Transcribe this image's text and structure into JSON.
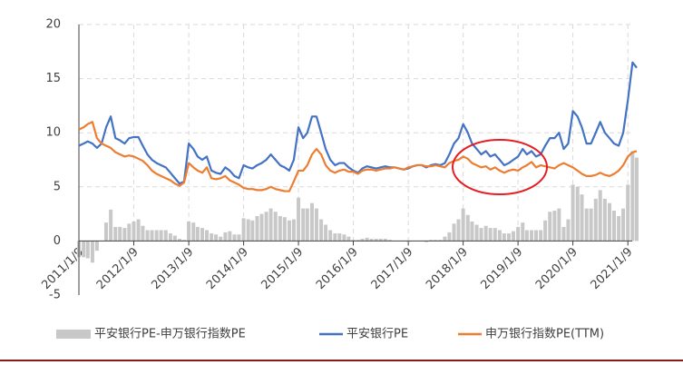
{
  "chart_data": {
    "type": "line",
    "x": [
      "2011/1/9",
      "2011/2/9",
      "2011/3/9",
      "2011/4/9",
      "2011/5/9",
      "2011/6/9",
      "2011/7/9",
      "2011/8/9",
      "2011/9/9",
      "2011/10/9",
      "2011/11/9",
      "2011/12/9",
      "2012/1/9",
      "2012/2/9",
      "2012/3/9",
      "2012/4/9",
      "2012/5/9",
      "2012/6/9",
      "2012/7/9",
      "2012/8/9",
      "2012/9/9",
      "2012/10/9",
      "2012/11/9",
      "2012/12/9",
      "2013/1/9",
      "2013/2/9",
      "2013/3/9",
      "2013/4/9",
      "2013/5/9",
      "2013/6/9",
      "2013/7/9",
      "2013/8/9",
      "2013/9/9",
      "2013/10/9",
      "2013/11/9",
      "2013/12/9",
      "2014/1/9",
      "2014/2/9",
      "2014/3/9",
      "2014/4/9",
      "2014/5/9",
      "2014/6/9",
      "2014/7/9",
      "2014/8/9",
      "2014/9/9",
      "2014/10/9",
      "2014/11/9",
      "2014/12/9",
      "2015/1/9",
      "2015/2/9",
      "2015/3/9",
      "2015/4/9",
      "2015/5/9",
      "2015/6/9",
      "2015/7/9",
      "2015/8/9",
      "2015/9/9",
      "2015/10/9",
      "2015/11/9",
      "2015/12/9",
      "2016/1/9",
      "2016/2/9",
      "2016/3/9",
      "2016/4/9",
      "2016/5/9",
      "2016/6/9",
      "2016/7/9",
      "2016/8/9",
      "2016/9/9",
      "2016/10/9",
      "2016/11/9",
      "2016/12/9",
      "2017/1/9",
      "2017/2/9",
      "2017/3/9",
      "2017/4/9",
      "2017/5/9",
      "2017/6/9",
      "2017/7/9",
      "2017/8/9",
      "2017/9/9",
      "2017/10/9",
      "2017/11/9",
      "2017/12/9",
      "2018/1/9",
      "2018/2/9",
      "2018/3/9",
      "2018/4/9",
      "2018/5/9",
      "2018/6/9",
      "2018/7/9",
      "2018/8/9",
      "2018/9/9",
      "2018/10/9",
      "2018/11/9",
      "2018/12/9",
      "2019/1/9",
      "2019/2/9",
      "2019/3/9",
      "2019/4/9",
      "2019/5/9",
      "2019/6/9",
      "2019/7/9",
      "2019/8/9",
      "2019/9/9",
      "2019/10/9",
      "2019/11/9",
      "2019/12/9",
      "2020/1/9",
      "2020/2/9",
      "2020/3/9",
      "2020/4/9",
      "2020/5/9",
      "2020/6/9",
      "2020/7/9",
      "2020/8/9",
      "2020/9/9",
      "2020/10/9",
      "2020/11/9",
      "2020/12/9",
      "2021/1/9",
      "2021/2/9",
      "2021/3/9"
    ],
    "series": [
      {
        "name": "平安银行PE-申万银行指数PE",
        "kind": "bar",
        "color": "#c8c8c8",
        "values": [
          -1.5,
          -1.5,
          -1.6,
          -2.0,
          -0.9,
          0,
          1.7,
          2.9,
          1.3,
          1.3,
          1.2,
          1.6,
          1.8,
          2.0,
          1.4,
          1.0,
          1.0,
          1.0,
          1.0,
          1.0,
          0.7,
          0.5,
          0.2,
          0.1,
          1.8,
          1.7,
          1.3,
          1.2,
          1.0,
          0.7,
          0.6,
          0.4,
          0.8,
          0.9,
          0.6,
          0.6,
          2.1,
          2.0,
          1.9,
          2.3,
          2.5,
          2.7,
          3.0,
          2.7,
          2.3,
          2.2,
          1.9,
          2.0,
          4.0,
          3.0,
          3.0,
          3.5,
          3.0,
          2.0,
          1.5,
          1.0,
          0.7,
          0.7,
          0.6,
          0.4,
          0.1,
          0.1,
          0.2,
          0.3,
          0.2,
          0.2,
          0.2,
          0.2,
          0.1,
          0,
          0,
          0,
          -0.1,
          0,
          0,
          0,
          -0.1,
          0.1,
          0.1,
          0.1,
          0.4,
          0.8,
          1.6,
          2.0,
          3.0,
          2.4,
          1.8,
          1.5,
          1.2,
          1.4,
          1.2,
          1.2,
          1.0,
          0.7,
          0.7,
          0.9,
          1.3,
          1.7,
          1.0,
          1.0,
          1.0,
          1.0,
          1.9,
          2.7,
          2.8,
          3.0,
          1.3,
          2.0,
          5.2,
          5.0,
          4.3,
          3.0,
          3.0,
          3.9,
          4.7,
          3.9,
          3.5,
          2.8,
          2.3,
          3.0,
          5.2,
          8.3,
          7.7
        ]
      },
      {
        "name": "平安银行PE",
        "kind": "line",
        "color": "#4472c4",
        "values": [
          8.8,
          9.0,
          9.2,
          9.0,
          8.6,
          9.0,
          10.5,
          11.5,
          9.5,
          9.3,
          9.0,
          9.5,
          9.6,
          9.6,
          8.8,
          8.0,
          7.5,
          7.2,
          7.0,
          6.8,
          6.3,
          5.8,
          5.3,
          5.5,
          9.0,
          8.5,
          7.8,
          7.5,
          7.8,
          6.5,
          6.3,
          6.2,
          6.8,
          6.5,
          6.0,
          5.8,
          7.0,
          6.8,
          6.7,
          7.0,
          7.2,
          7.5,
          8.0,
          7.5,
          7.0,
          6.8,
          6.5,
          7.5,
          10.5,
          9.5,
          10.0,
          11.5,
          11.5,
          10.0,
          8.5,
          7.5,
          7.0,
          7.2,
          7.2,
          6.8,
          6.5,
          6.3,
          6.7,
          6.9,
          6.8,
          6.7,
          6.8,
          6.9,
          6.8,
          6.8,
          6.7,
          6.6,
          6.7,
          6.9,
          7.0,
          7.0,
          6.8,
          7.0,
          7.1,
          7.0,
          7.2,
          8.0,
          9.0,
          9.5,
          10.8,
          10.0,
          9.0,
          8.5,
          8.0,
          8.3,
          7.8,
          8.0,
          7.5,
          7.0,
          7.2,
          7.5,
          7.8,
          8.5,
          8.0,
          8.3,
          7.8,
          8.0,
          8.8,
          9.5,
          9.5,
          10.0,
          8.5,
          9.0,
          12.0,
          11.5,
          10.5,
          9.0,
          9.0,
          10.0,
          11.0,
          10.0,
          9.5,
          9.0,
          8.8,
          10.0,
          13.0,
          16.5,
          16.0
        ]
      },
      {
        "name": "申万银行指数PE(TTM)",
        "kind": "line",
        "color": "#ed7d31",
        "values": [
          10.3,
          10.5,
          10.8,
          11.0,
          9.5,
          9.0,
          8.8,
          8.6,
          8.2,
          8.0,
          7.8,
          7.9,
          7.8,
          7.6,
          7.4,
          7.0,
          6.5,
          6.2,
          6.0,
          5.8,
          5.6,
          5.3,
          5.1,
          5.4,
          7.2,
          6.8,
          6.5,
          6.3,
          6.8,
          5.8,
          5.7,
          5.8,
          6.0,
          5.6,
          5.4,
          5.2,
          4.9,
          4.8,
          4.8,
          4.7,
          4.7,
          4.8,
          5.0,
          4.8,
          4.7,
          4.6,
          4.6,
          5.5,
          6.5,
          6.5,
          7.0,
          8.0,
          8.5,
          8.0,
          7.0,
          6.5,
          6.3,
          6.5,
          6.6,
          6.4,
          6.4,
          6.2,
          6.5,
          6.6,
          6.6,
          6.5,
          6.6,
          6.7,
          6.7,
          6.8,
          6.7,
          6.6,
          6.8,
          6.9,
          7.0,
          7.0,
          6.9,
          6.9,
          7.0,
          6.9,
          6.8,
          7.2,
          7.4,
          7.5,
          7.8,
          7.6,
          7.2,
          7.0,
          6.8,
          6.9,
          6.6,
          6.8,
          6.5,
          6.3,
          6.5,
          6.6,
          6.5,
          6.8,
          7.0,
          7.3,
          6.8,
          7.0,
          6.9,
          6.8,
          6.7,
          7.0,
          7.2,
          7.0,
          6.8,
          6.5,
          6.2,
          6.0,
          6.0,
          6.1,
          6.3,
          6.1,
          6.0,
          6.2,
          6.5,
          7.0,
          7.8,
          8.2,
          8.3
        ]
      }
    ],
    "xlim": [
      "2011/1/9",
      "2021/3/9"
    ],
    "xticks": [
      "2011/1/9",
      "2012/1/9",
      "2013/1/9",
      "2014/1/9",
      "2015/1/9",
      "2016/1/9",
      "2017/1/9",
      "2018/1/9",
      "2019/1/9",
      "2020/1/9",
      "2021/1/9"
    ],
    "ylim": [
      -5,
      20
    ],
    "yticks": [
      -5,
      0,
      5,
      10,
      15,
      20
    ],
    "grid": true,
    "legend": "bottom"
  }
}
